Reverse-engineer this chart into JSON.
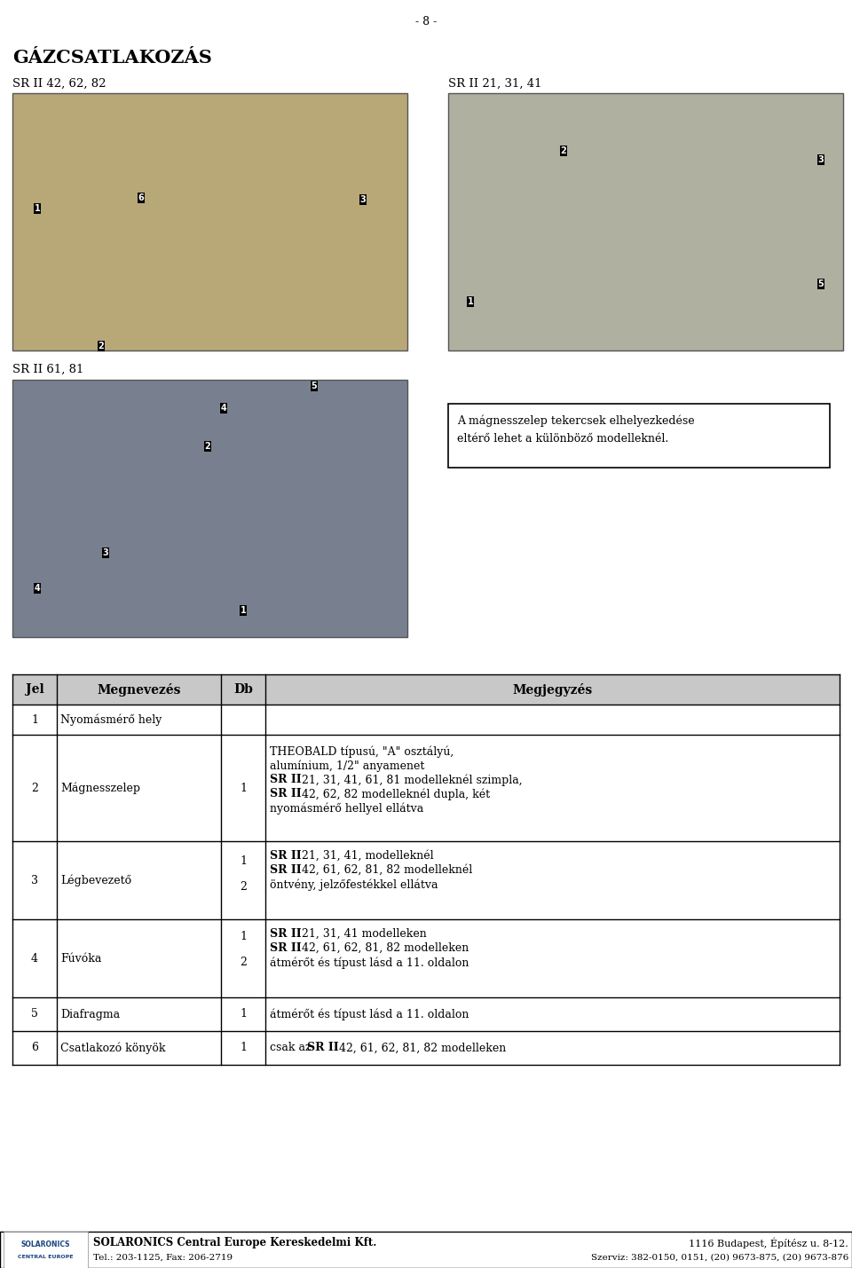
{
  "page_number": "- 8 -",
  "title": "GÁZCSATLAKOZÁS",
  "subtitle_left": "SR II 42, 62, 82",
  "subtitle_right": "SR II 21, 31, 41",
  "subtitle_third": "SR II 61, 81",
  "note_box": "A mágnesszelep tekercsek elhelyezkedése\neltérő lehet a különböző modelleknél.",
  "table_headers": [
    "Jel",
    "Megnevezés",
    "Db",
    "Megjegyzés"
  ],
  "table_rows": [
    {
      "jel": "1",
      "megnevezes": "Nyomásmérő hely",
      "db": "",
      "megjegyzes": ""
    },
    {
      "jel": "2",
      "megnevezes": "Mágnesszelep",
      "db": "1",
      "megjegyzes": ""
    },
    {
      "jel": "3",
      "megnevezes": "Légbevezető",
      "db": "",
      "megjegyzes": ""
    },
    {
      "jel": "4",
      "megnevezes": "Fúvóka",
      "db": "",
      "megjegyzes": ""
    },
    {
      "jel": "5",
      "megnevezes": "Diafragma",
      "db": "1",
      "megjegyzes": "átmérőt és típust lásd a 11. oldalon"
    },
    {
      "jel": "6",
      "megnevezes": "Csatlakozó könyök",
      "db": "1",
      "megjegyzes": "csak az SR II 42, 61, 62, 81, 82 modelleken"
    }
  ],
  "footer_company": "SOLARONICS Central Europe Kereskedelmi Kft.",
  "footer_tel": "Tel.: 203-1125, Fax: 206-2719",
  "footer_address": "1116 Budapest, Építész u. 8-12.",
  "footer_szerviz": "Szerviz: 382-0150, 0151, (20) 9673-875, (20) 9673-876",
  "bg_color": "#ffffff",
  "text_color": "#000000",
  "photo1_color": "#b8a878",
  "photo2_color": "#b0b0a0",
  "photo3_color": "#788090"
}
